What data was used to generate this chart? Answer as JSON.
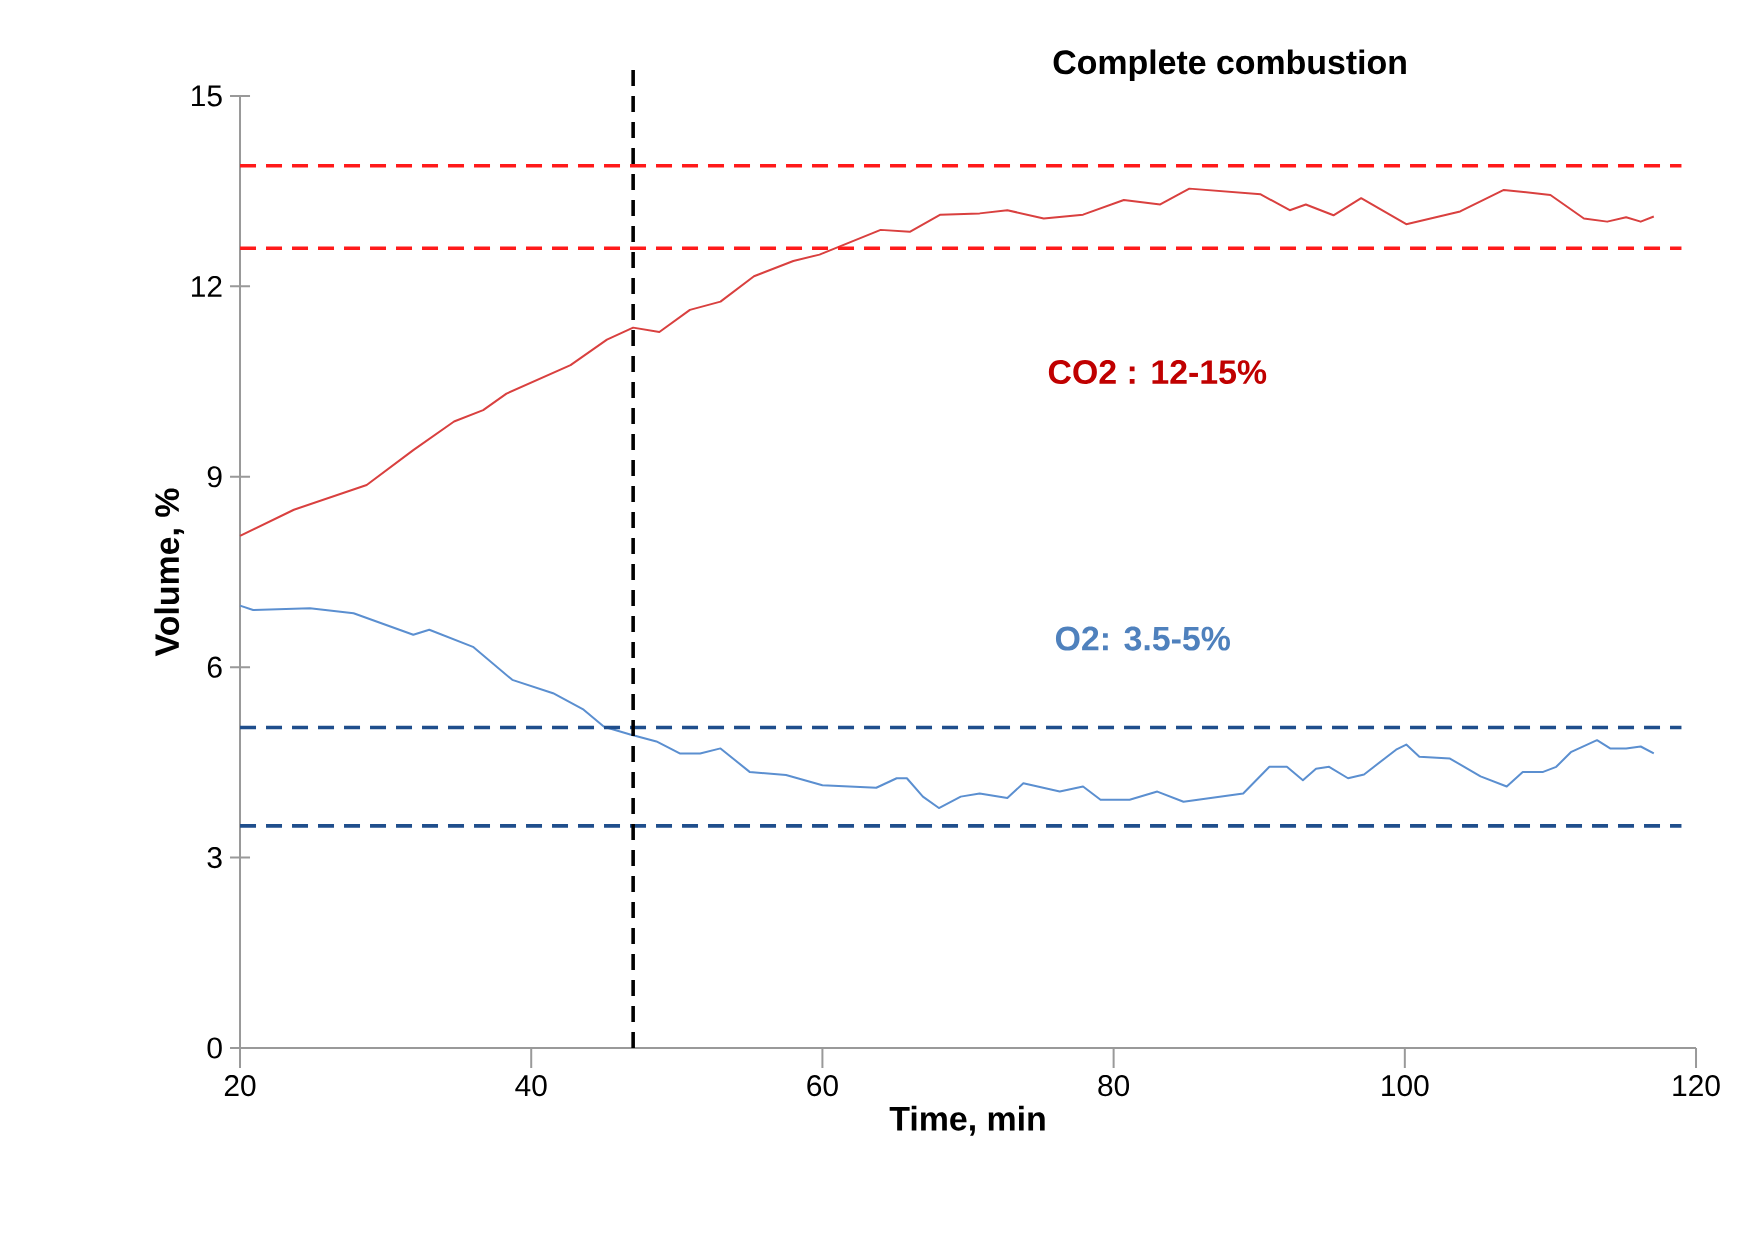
{
  "chart_data": {
    "type": "line",
    "title": "Complete combustion",
    "xlabel": "Time, min",
    "ylabel": "Volume, %",
    "xlim": [
      20,
      120
    ],
    "xticks": [
      20,
      40,
      60,
      80,
      100,
      120
    ],
    "ylim": [
      0,
      15
    ],
    "yticks": [
      0,
      3,
      6,
      9,
      12,
      15
    ],
    "marker": "none",
    "line_style": "solid",
    "series": [
      {
        "color": "#d9403f",
        "x": [
          20,
          23.7,
          28.7,
          31.9,
          34.7,
          36.7,
          38.3,
          42.7,
          45.2,
          47,
          48.8,
          50.9,
          53,
          55.3,
          58,
          59.8,
          64,
          66,
          68.1,
          70.8,
          72.7,
          75.2,
          77.9,
          80.7,
          83.2,
          85.2,
          90.1,
          92.1,
          93.2,
          95.1,
          97,
          100.1,
          103.8,
          106.8,
          110,
          112.3,
          113.9,
          115.2,
          116.2,
          117.1
        ],
        "values": [
          8.07,
          8.48,
          8.87,
          9.42,
          9.87,
          10.05,
          10.31,
          10.76,
          11.16,
          11.35,
          11.28,
          11.63,
          11.76,
          12.16,
          12.4,
          12.5,
          12.89,
          12.86,
          13.13,
          13.15,
          13.2,
          13.07,
          13.13,
          13.36,
          13.29,
          13.54,
          13.45,
          13.2,
          13.29,
          13.12,
          13.39,
          12.98,
          13.18,
          13.52,
          13.44,
          13.07,
          13.02,
          13.09,
          13.02,
          13.1
        ]
      },
      {
        "color": "#5b8fd0",
        "x": [
          20,
          20.9,
          24.8,
          27.8,
          31.9,
          33,
          36,
          38.7,
          41.5,
          43.6,
          45,
          46.8,
          48.6,
          50.2,
          51.6,
          53,
          55,
          57.5,
          60,
          63.7,
          65.1,
          65.8,
          66.9,
          68,
          69.5,
          70.8,
          72.7,
          73.8,
          76.3,
          77.9,
          79.1,
          81.1,
          83,
          84.8,
          88.9,
          90.7,
          91.9,
          93,
          93.9,
          94.8,
          96.1,
          97.2,
          99.4,
          100.1,
          101,
          103.1,
          105.2,
          107,
          108.1,
          109.5,
          110.4,
          111.4,
          113.2,
          114.1,
          115.2,
          116.2,
          117.1
        ],
        "values": [
          6.97,
          6.9,
          6.93,
          6.85,
          6.51,
          6.59,
          6.32,
          5.8,
          5.59,
          5.33,
          5.06,
          4.94,
          4.83,
          4.64,
          4.64,
          4.72,
          4.35,
          4.3,
          4.14,
          4.1,
          4.25,
          4.25,
          3.96,
          3.78,
          3.96,
          4.01,
          3.94,
          4.17,
          4.04,
          4.12,
          3.91,
          3.91,
          4.04,
          3.88,
          4.01,
          4.43,
          4.43,
          4.22,
          4.4,
          4.43,
          4.25,
          4.31,
          4.7,
          4.78,
          4.59,
          4.56,
          4.28,
          4.12,
          4.35,
          4.35,
          4.43,
          4.66,
          4.85,
          4.72,
          4.72,
          4.75,
          4.64
        ]
      }
    ],
    "ref_lines": [
      {
        "axis": "y",
        "value": 13.9,
        "color": "#ff1a1a",
        "line_style": "dashed"
      },
      {
        "axis": "y",
        "value": 12.6,
        "color": "#ff1a1a",
        "line_style": "dashed"
      },
      {
        "axis": "y",
        "value": 5.05,
        "color": "#1f4e8c",
        "line_style": "dashed"
      },
      {
        "axis": "y",
        "value": 3.5,
        "color": "#1f4e8c",
        "line_style": "dashed"
      },
      {
        "axis": "x",
        "value": 47,
        "color": "#000000",
        "line_style": "dashed"
      }
    ],
    "annotations": [
      "CO2 :   12-15%",
      "O2:   3.5-5%"
    ]
  }
}
